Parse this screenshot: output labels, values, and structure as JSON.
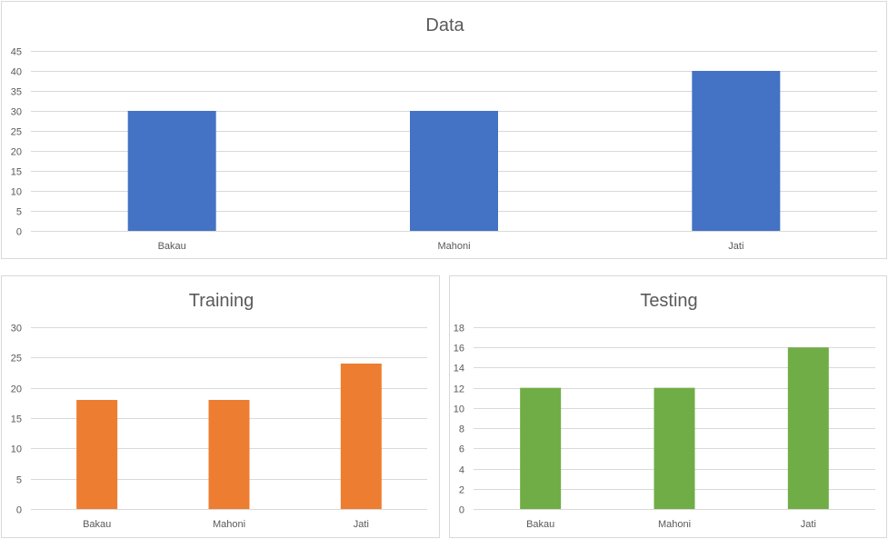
{
  "chart_data": [
    {
      "type": "bar",
      "title": "Data",
      "categories": [
        "Bakau",
        "Mahoni",
        "Jati"
      ],
      "series": [
        {
          "values": [
            30,
            30,
            40
          ],
          "color": "#4472C4"
        }
      ],
      "ylim": [
        0,
        45
      ],
      "yticks": [
        0,
        5,
        10,
        15,
        20,
        25,
        30,
        35,
        40,
        45
      ],
      "grid": true,
      "xlabel": "",
      "ylabel": ""
    },
    {
      "type": "bar",
      "title": "Training",
      "categories": [
        "Bakau",
        "Mahoni",
        "Jati"
      ],
      "series": [
        {
          "values": [
            18,
            18,
            24
          ],
          "color": "#ED7D31"
        }
      ],
      "ylim": [
        0,
        30
      ],
      "yticks": [
        0,
        5,
        10,
        15,
        20,
        25,
        30
      ],
      "grid": true,
      "xlabel": "",
      "ylabel": ""
    },
    {
      "type": "bar",
      "title": "Testing",
      "categories": [
        "Bakau",
        "Mahoni",
        "Jati"
      ],
      "series": [
        {
          "values": [
            12,
            12,
            16
          ],
          "color": "#70AD47"
        }
      ],
      "ylim": [
        0,
        18
      ],
      "yticks": [
        0,
        2,
        4,
        6,
        8,
        10,
        12,
        14,
        16,
        18
      ],
      "grid": true,
      "xlabel": "",
      "ylabel": ""
    }
  ]
}
